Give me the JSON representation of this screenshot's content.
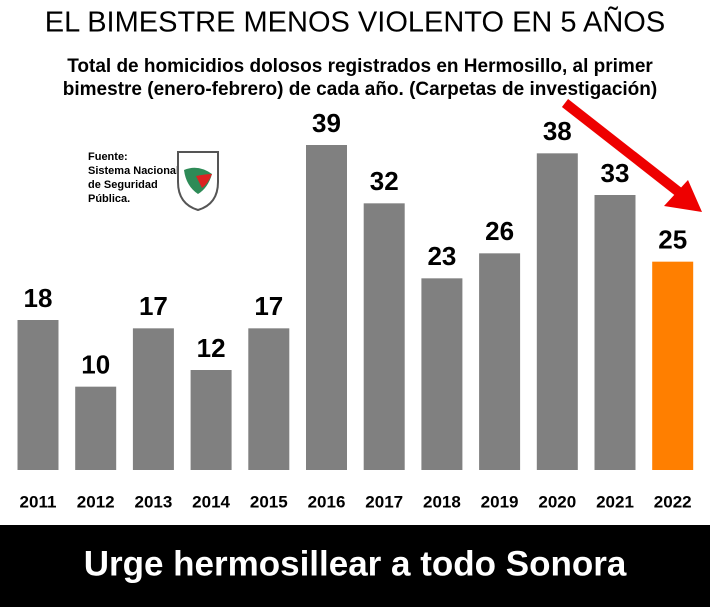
{
  "chart_data": {
    "type": "bar",
    "title": "EL BIMESTRE MENOS VIOLENTO EN 5 AÑOS",
    "subtitle": [
      "Total de homicidios dolosos registrados en Hermosillo, al primer",
      "bimestre (enero-febrero) de cada año. (Carpetas de investigación)"
    ],
    "source": [
      "Fuente:",
      "Sistema Nacional",
      "de Seguridad",
      "Pública."
    ],
    "footer": "Urge hermosillear a todo Sonora",
    "categories": [
      "2011",
      "2012",
      "2013",
      "2014",
      "2015",
      "2016",
      "2017",
      "2018",
      "2019",
      "2020",
      "2021",
      "2022"
    ],
    "values": [
      18,
      10,
      17,
      12,
      17,
      39,
      32,
      23,
      26,
      38,
      33,
      25
    ],
    "colors": [
      "#808080",
      "#808080",
      "#808080",
      "#808080",
      "#808080",
      "#808080",
      "#808080",
      "#808080",
      "#808080",
      "#808080",
      "#808080",
      "#ff7f00"
    ]
  }
}
